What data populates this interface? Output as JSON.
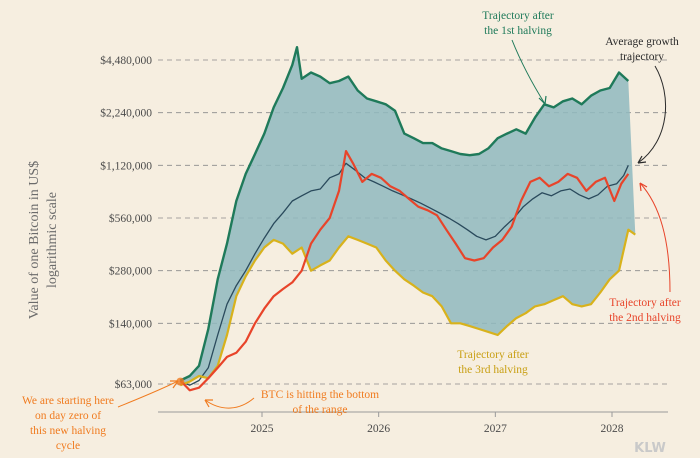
{
  "chart_data": {
    "type": "area",
    "y_scale": "log",
    "ylabel_line1": "Value of one Bitcoin in US$",
    "ylabel_line2": "logarithmic scale",
    "yticks": [
      63000,
      140000,
      280000,
      560000,
      1120000,
      2240000,
      4480000
    ],
    "ytick_labels": [
      "$63,000",
      "$140,000",
      "$280,000",
      "$560,000",
      "$1,120,000",
      "$2,240,000",
      "$4,480,000"
    ],
    "ylim": [
      46000,
      7000000
    ],
    "xlim": [
      2024.2,
      2028.5
    ],
    "xticks": [
      2025,
      2026,
      2027,
      2028
    ],
    "xtick_labels": [
      "2025",
      "2026",
      "2027",
      "2028"
    ],
    "grid": "horizontal dashed",
    "colors": {
      "first_halving": "#1f7a5a",
      "second_halving": "#e8442a",
      "third_halving": "#d8b21c",
      "average": "#2a4a5c",
      "band_fill": "#8fb9be",
      "orange_annotation": "#f07b1f"
    },
    "series": [
      {
        "name": "Trajectory after the 1st halving",
        "key": "first",
        "x": [
          2024.3,
          2024.38,
          2024.46,
          2024.54,
          2024.62,
          2024.7,
          2024.78,
          2024.86,
          2024.94,
          2025.02,
          2025.1,
          2025.18,
          2025.26,
          2025.3,
          2025.34,
          2025.42,
          2025.5,
          2025.58,
          2025.66,
          2025.74,
          2025.82,
          2025.9,
          2025.98,
          2026.06,
          2026.14,
          2026.22,
          2026.3,
          2026.38,
          2026.46,
          2026.54,
          2026.62,
          2026.7,
          2026.78,
          2026.86,
          2026.94,
          2027.02,
          2027.1,
          2027.18,
          2027.26,
          2027.34,
          2027.42,
          2027.5,
          2027.58,
          2027.66,
          2027.74,
          2027.82,
          2027.9,
          2027.98,
          2028.06,
          2028.14
        ],
        "values": [
          66000,
          70000,
          80000,
          130000,
          250000,
          400000,
          700000,
          1000000,
          1300000,
          1700000,
          2400000,
          3100000,
          4200000,
          5300000,
          3500000,
          3800000,
          3600000,
          3300000,
          3400000,
          3600000,
          3000000,
          2700000,
          2600000,
          2500000,
          2300000,
          1700000,
          1600000,
          1500000,
          1500000,
          1400000,
          1350000,
          1300000,
          1280000,
          1300000,
          1400000,
          1600000,
          1700000,
          1800000,
          1700000,
          2100000,
          2500000,
          2400000,
          2600000,
          2700000,
          2500000,
          2800000,
          3000000,
          3100000,
          3800000,
          3400000
        ]
      },
      {
        "name": "Trajectory after the 2nd halving",
        "key": "second",
        "x": [
          2024.3,
          2024.38,
          2024.46,
          2024.54,
          2024.62,
          2024.7,
          2024.78,
          2024.86,
          2024.94,
          2025.02,
          2025.1,
          2025.18,
          2025.26,
          2025.34,
          2025.42,
          2025.5,
          2025.58,
          2025.66,
          2025.72,
          2025.78,
          2025.86,
          2025.94,
          2026.02,
          2026.1,
          2026.18,
          2026.26,
          2026.34,
          2026.42,
          2026.5,
          2026.58,
          2026.66,
          2026.74,
          2026.82,
          2026.9,
          2026.98,
          2027.06,
          2027.14,
          2027.22,
          2027.3,
          2027.38,
          2027.46,
          2027.54,
          2027.62,
          2027.7,
          2027.78,
          2027.86,
          2027.94,
          2028.02,
          2028.08,
          2028.14
        ],
        "values": [
          66000,
          58000,
          60000,
          68000,
          78000,
          90000,
          95000,
          110000,
          140000,
          170000,
          200000,
          220000,
          240000,
          280000,
          400000,
          480000,
          560000,
          800000,
          1350000,
          1150000,
          900000,
          1000000,
          950000,
          850000,
          800000,
          720000,
          650000,
          620000,
          580000,
          480000,
          400000,
          330000,
          320000,
          330000,
          380000,
          420000,
          500000,
          700000,
          900000,
          950000,
          850000,
          900000,
          1000000,
          950000,
          800000,
          900000,
          950000,
          700000,
          880000,
          1000000
        ]
      },
      {
        "name": "Trajectory after the 3rd halving",
        "key": "third",
        "x": [
          2024.3,
          2024.38,
          2024.46,
          2024.54,
          2024.62,
          2024.7,
          2024.78,
          2024.86,
          2024.94,
          2025.02,
          2025.1,
          2025.18,
          2025.26,
          2025.34,
          2025.42,
          2025.5,
          2025.58,
          2025.66,
          2025.74,
          2025.82,
          2025.9,
          2025.98,
          2026.06,
          2026.14,
          2026.22,
          2026.3,
          2026.38,
          2026.46,
          2026.54,
          2026.62,
          2026.7,
          2026.78,
          2026.86,
          2026.94,
          2027.02,
          2027.1,
          2027.18,
          2027.26,
          2027.34,
          2027.42,
          2027.5,
          2027.58,
          2027.66,
          2027.74,
          2027.82,
          2027.9,
          2027.98,
          2028.06,
          2028.14,
          2028.2
        ],
        "values": [
          62000,
          65000,
          70000,
          68000,
          80000,
          120000,
          200000,
          260000,
          320000,
          380000,
          420000,
          400000,
          350000,
          380000,
          280000,
          300000,
          320000,
          380000,
          440000,
          420000,
          400000,
          380000,
          320000,
          280000,
          250000,
          230000,
          210000,
          200000,
          175000,
          140000,
          140000,
          135000,
          130000,
          125000,
          120000,
          135000,
          150000,
          160000,
          175000,
          180000,
          190000,
          200000,
          180000,
          175000,
          180000,
          210000,
          250000,
          280000,
          480000,
          450000
        ]
      },
      {
        "name": "Average growth trajectory",
        "key": "average",
        "x": [
          2024.3,
          2024.38,
          2024.46,
          2024.54,
          2024.62,
          2024.7,
          2024.78,
          2024.86,
          2024.94,
          2025.02,
          2025.1,
          2025.18,
          2025.26,
          2025.34,
          2025.42,
          2025.5,
          2025.58,
          2025.66,
          2025.72,
          2025.8,
          2025.88,
          2025.96,
          2026.04,
          2026.12,
          2026.2,
          2026.28,
          2026.36,
          2026.44,
          2026.52,
          2026.6,
          2026.68,
          2026.76,
          2026.84,
          2026.92,
          2027.0,
          2027.08,
          2027.16,
          2027.24,
          2027.32,
          2027.4,
          2027.48,
          2027.56,
          2027.64,
          2027.72,
          2027.8,
          2027.88,
          2027.96,
          2028.04,
          2028.1,
          2028.14
        ],
        "values": [
          65000,
          62000,
          66000,
          78000,
          120000,
          180000,
          230000,
          280000,
          350000,
          430000,
          520000,
          600000,
          700000,
          750000,
          800000,
          820000,
          950000,
          1000000,
          1150000,
          1050000,
          950000,
          900000,
          850000,
          800000,
          760000,
          720000,
          680000,
          640000,
          600000,
          560000,
          520000,
          480000,
          440000,
          420000,
          440000,
          500000,
          560000,
          650000,
          720000,
          780000,
          750000,
          800000,
          820000,
          760000,
          720000,
          760000,
          850000,
          880000,
          980000,
          1120000
        ]
      }
    ],
    "annotations": {
      "first": "Trajectory after the 1st halving",
      "first_line1": "Trajectory after",
      "first_line2": "the 1st halving",
      "average_line1": "Average growth",
      "average_line2": "trajectory",
      "second_line1": "Trajectory after",
      "second_line2": "the 2nd halving",
      "third_line1": "Trajectory after",
      "third_line2": "the 3rd halving",
      "start_line1": "We are starting here",
      "start_line2": "on day zero of",
      "start_line3": "this new halving",
      "start_line4": "cycle",
      "bottom_line1": "BTC is hitting the bottom",
      "bottom_line2": "of the range"
    },
    "watermark": "KLW"
  }
}
